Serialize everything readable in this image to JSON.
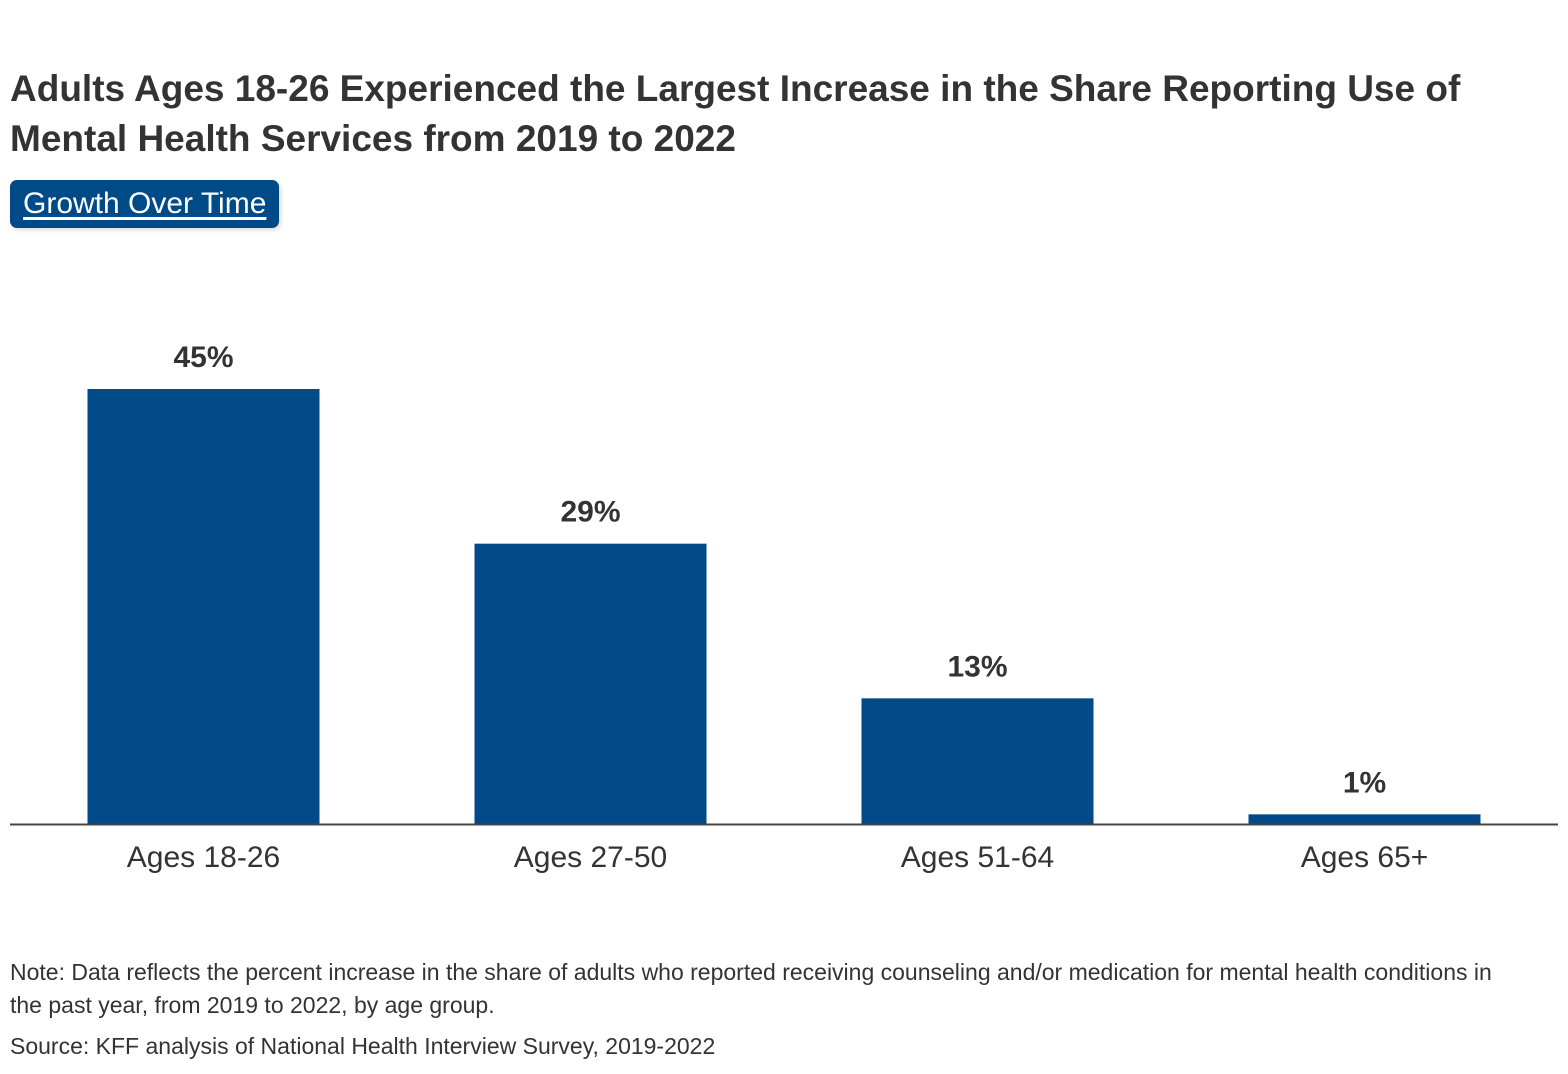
{
  "colors": {
    "bar": "#004a87",
    "text": "#333333",
    "axis": "#444444",
    "button_bg": "#004a87",
    "button_text": "#ffffff"
  },
  "controls": {
    "growth_over_time_label": "Growth Over Time"
  },
  "notes": {
    "note": "Note: Data reflects the percent increase in the share of adults who reported receiving counseling and/or medication for mental health conditions in the past year, from 2019 to 2022, by age group.",
    "source": "Source: KFF analysis of National Health Interview Survey, 2019-2022"
  },
  "chart_data": {
    "type": "bar",
    "title": "Adults Ages 18-26 Experienced the Largest Increase in the Share Reporting Use of Mental Health Services from 2019 to 2022",
    "categories": [
      "Ages 18-26",
      "Ages 27-50",
      "Ages 51-64",
      "Ages 65+"
    ],
    "values": [
      45,
      29,
      13,
      1
    ],
    "data_labels": [
      "45%",
      "29%",
      "13%",
      "1%"
    ],
    "unit": "%",
    "xlabel": "",
    "ylabel": "",
    "ylim": [
      0,
      45
    ],
    "grid": false,
    "legend": "none"
  }
}
